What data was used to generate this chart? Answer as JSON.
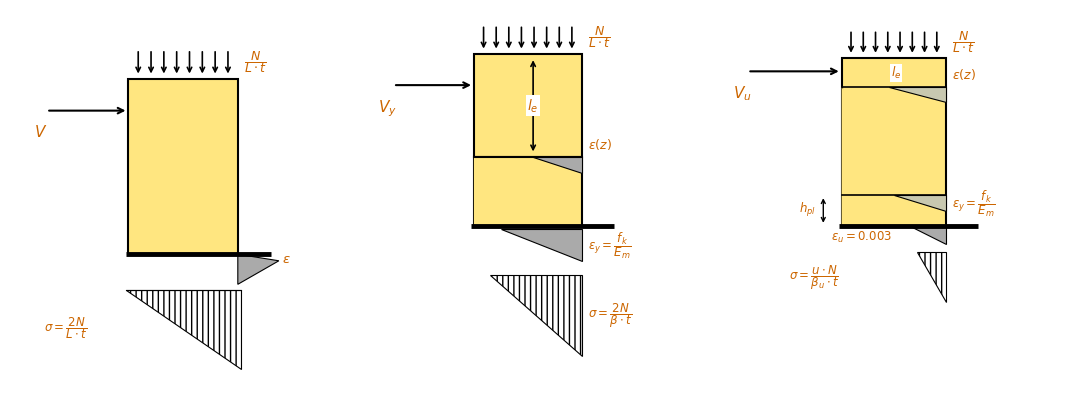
{
  "yellow": "#FFE680",
  "gray_light": "#C8C8B0",
  "gray_med": "#AAAAAA",
  "black": "#000000",
  "orange": "#CC6600",
  "bg": "#FFFFFF",
  "fig_w": 10.77,
  "fig_h": 3.99,
  "dpi": 100
}
